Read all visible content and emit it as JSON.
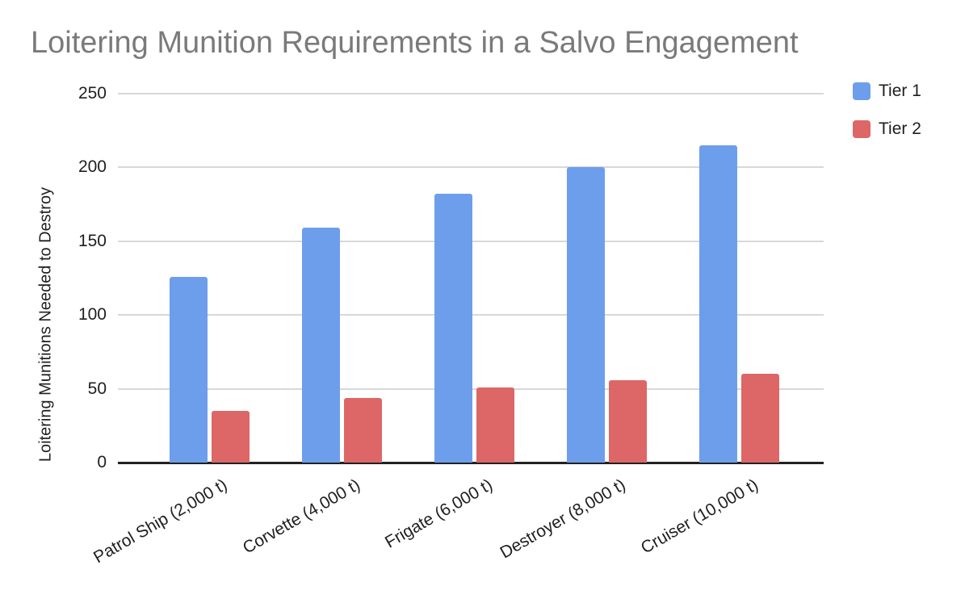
{
  "title": "Loitering Munition Requirements in a Salvo Engagement",
  "legend": {
    "items": [
      {
        "label": "Tier 1",
        "color": "#6d9eeb"
      },
      {
        "label": "Tier 2",
        "color": "#dd6666"
      }
    ]
  },
  "chart_data": {
    "type": "bar",
    "title": "Loitering Munition Requirements in a Salvo Engagement",
    "xlabel": "",
    "ylabel": "Loitering Munitions Needed to Destroy",
    "categories": [
      "Patrol Ship (2,000 t)",
      "Corvette (4,000 t)",
      "Frigate (6,000 t)",
      "Destroyer (8,000 t)",
      "Cruiser (10,000 t)"
    ],
    "series": [
      {
        "name": "Tier 1",
        "color": "#6d9eeb",
        "values": [
          126,
          159,
          182,
          200,
          215
        ]
      },
      {
        "name": "Tier 2",
        "color": "#dd6666",
        "values": [
          35,
          44,
          51,
          56,
          60
        ]
      }
    ],
    "ylim": [
      0,
      250
    ],
    "yticks": [
      0,
      50,
      100,
      150,
      200,
      250
    ],
    "grid": true,
    "legend_position": "right",
    "x_tick_rotation_deg": -30,
    "colors": {
      "title_text": "#7a7a7a",
      "gridline": "#d8d8d8",
      "axis_line": "#212121",
      "tick_text": "#1f1f1f"
    }
  }
}
